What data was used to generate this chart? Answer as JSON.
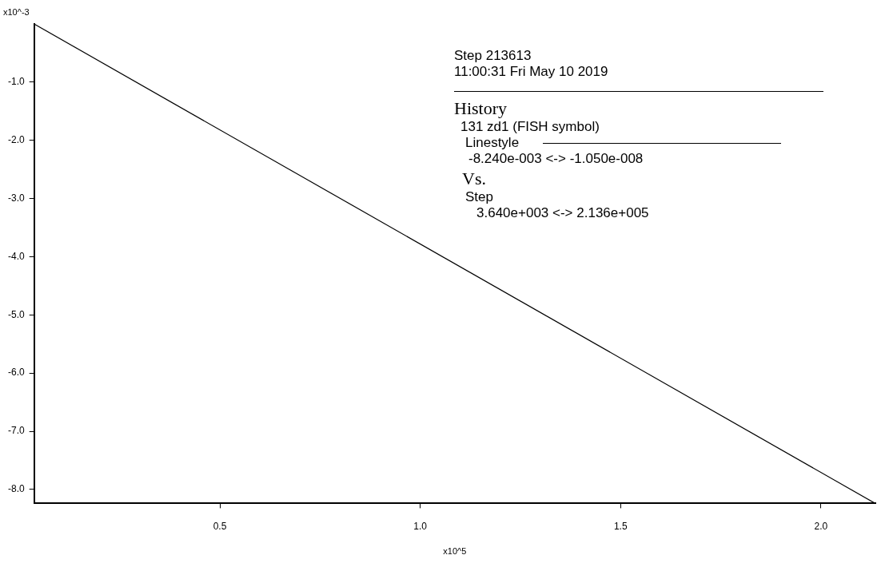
{
  "chart_data": {
    "type": "line",
    "xlabel": "x10^5",
    "ylabel": "x10^-3",
    "x": [
      0.0364,
      2.136
    ],
    "series": [
      {
        "color": "#000000",
        "values": [
          0,
          -8.24
        ]
      }
    ],
    "xlim": [
      0.0364,
      2.136
    ],
    "xticks": [
      0.5,
      {
        "value": 1,
        "label": "1.0"
      },
      1.5,
      {
        "value": 2,
        "label": "2.0"
      }
    ],
    "ylim": [
      -8.24,
      0
    ],
    "yticks": [
      {
        "value": -1,
        "label": "-1.0"
      },
      {
        "value": -2,
        "label": "-2.0"
      },
      {
        "value": -3,
        "label": "-3.0"
      },
      {
        "value": -4,
        "label": "-4.0"
      },
      {
        "value": -5,
        "label": "-5.0"
      },
      {
        "value": -6,
        "label": "-6.0"
      },
      {
        "value": -7,
        "label": "-7.0"
      },
      {
        "value": -8,
        "label": "-8.0"
      }
    ],
    "grid": false,
    "legend": false,
    "marker": "none",
    "line_style": "solid",
    "annotations": [
      "Step 213613",
      "11:00:31 Fri May 10 2019",
      "History",
      "131 zd1 (FISH symbol)",
      "Linestyle",
      "-8.240e-003 <-> -1.050e-008",
      "Vs.",
      "Step",
      "3.640e+003 <->  2.136e+005"
    ]
  }
}
